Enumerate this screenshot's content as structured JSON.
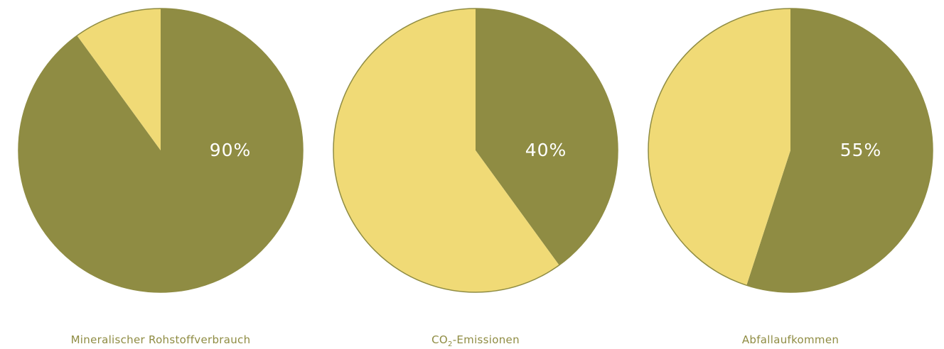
{
  "colors": {
    "primary": "#8f8c43",
    "secondary": "#f0da76",
    "outline": "#8f8c43"
  },
  "chart_data": [
    {
      "type": "pie",
      "title": "Mineralischer Rohstoffverbrauch",
      "value_label": "90%",
      "slices": [
        {
          "value": 90,
          "color": "#8f8c43"
        },
        {
          "value": 10,
          "color": "#f0da76"
        }
      ]
    },
    {
      "type": "pie",
      "title": "CO₂-Emissionen",
      "title_parts": {
        "pre": "CO",
        "sub": "2",
        "post": "-Emissionen"
      },
      "value_label": "40%",
      "slices": [
        {
          "value": 40,
          "color": "#8f8c43"
        },
        {
          "value": 60,
          "color": "#f0da76"
        }
      ]
    },
    {
      "type": "pie",
      "title": "Abfallaufkommen",
      "value_label": "55%",
      "slices": [
        {
          "value": 55,
          "color": "#8f8c43"
        },
        {
          "value": 45,
          "color": "#f0da76"
        }
      ]
    }
  ]
}
